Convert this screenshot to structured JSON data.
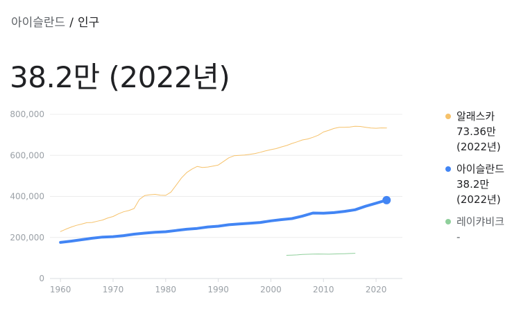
{
  "breadcrumb": {
    "parent": "아이슬란드",
    "separator": "/",
    "current": "인구"
  },
  "headline": "38.2만 (2022년)",
  "legend": [
    {
      "name": "알래스카",
      "value": "73.36만",
      "year": "(2022년)",
      "color": "#f6c26b"
    },
    {
      "name": "아이슬란드",
      "value": "38.2만",
      "year": "(2022년)",
      "color": "#4285f4"
    },
    {
      "name": "레이캬비크",
      "value": "-",
      "year": "",
      "color": "#8fcf9b"
    }
  ],
  "chart_data": {
    "type": "line",
    "xlabel": "",
    "ylabel": "",
    "xlim": [
      1958,
      2025
    ],
    "ylim": [
      0,
      800000
    ],
    "x_ticks": [
      1960,
      1970,
      1980,
      1990,
      2000,
      2010,
      2020
    ],
    "y_ticks": [
      0,
      200000,
      400000,
      600000,
      800000
    ],
    "y_tick_labels": [
      "0",
      "200,000",
      "400,000",
      "600,000",
      "800,000"
    ],
    "grid": "horizontal",
    "legend_position": "right",
    "series": [
      {
        "name": "알래스카",
        "color": "#f6c26b",
        "width": 1,
        "x": [
          1960,
          1961,
          1962,
          1963,
          1964,
          1965,
          1966,
          1967,
          1968,
          1969,
          1970,
          1971,
          1972,
          1973,
          1974,
          1975,
          1976,
          1977,
          1978,
          1979,
          1980,
          1981,
          1982,
          1983,
          1984,
          1985,
          1986,
          1987,
          1988,
          1989,
          1990,
          1991,
          1992,
          1993,
          1994,
          1995,
          1996,
          1997,
          1998,
          1999,
          2000,
          2001,
          2002,
          2003,
          2004,
          2005,
          2006,
          2007,
          2008,
          2009,
          2010,
          2011,
          2012,
          2013,
          2014,
          2015,
          2016,
          2017,
          2018,
          2019,
          2020,
          2021,
          2022
        ],
        "y": [
          229000,
          240000,
          250000,
          259000,
          265000,
          272000,
          273000,
          279000,
          285000,
          295000,
          302000,
          315000,
          325000,
          331000,
          341000,
          385000,
          404000,
          408000,
          410000,
          406000,
          405000,
          421000,
          455000,
          490000,
          516000,
          533000,
          546000,
          541000,
          543000,
          548000,
          553000,
          570000,
          588000,
          598000,
          600000,
          602000,
          605000,
          609000,
          615000,
          622000,
          628000,
          633000,
          641000,
          648000,
          658000,
          666000,
          675000,
          680000,
          688000,
          698000,
          714000,
          722000,
          731000,
          737000,
          737000,
          738000,
          742000,
          741000,
          737000,
          733000,
          732000,
          734000,
          733600
        ]
      },
      {
        "name": "아이슬란드",
        "color": "#4285f4",
        "width": 4,
        "endpoint": true,
        "x": [
          1960,
          1962,
          1964,
          1966,
          1968,
          1970,
          1972,
          1974,
          1976,
          1978,
          1980,
          1982,
          1984,
          1986,
          1988,
          1990,
          1992,
          1994,
          1996,
          1998,
          2000,
          2002,
          2004,
          2006,
          2008,
          2010,
          2012,
          2014,
          2016,
          2018,
          2020,
          2022
        ],
        "y": [
          176000,
          182000,
          189000,
          196000,
          202000,
          204000,
          209000,
          216000,
          221000,
          225000,
          228000,
          234000,
          240000,
          244000,
          251000,
          255000,
          262000,
          266000,
          269000,
          273000,
          281000,
          287000,
          292000,
          304000,
          319000,
          318000,
          321000,
          327000,
          335000,
          352000,
          367000,
          382000
        ]
      },
      {
        "name": "레이캬비크",
        "color": "#8fcf9b",
        "width": 1,
        "x": [
          2003,
          2004,
          2005,
          2006,
          2007,
          2008,
          2009,
          2010,
          2011,
          2012,
          2013,
          2014,
          2015,
          2016
        ],
        "y": [
          113000,
          114000,
          115000,
          117000,
          118000,
          119000,
          119500,
          119000,
          118500,
          119500,
          120000,
          121000,
          122000,
          123000
        ]
      }
    ]
  }
}
